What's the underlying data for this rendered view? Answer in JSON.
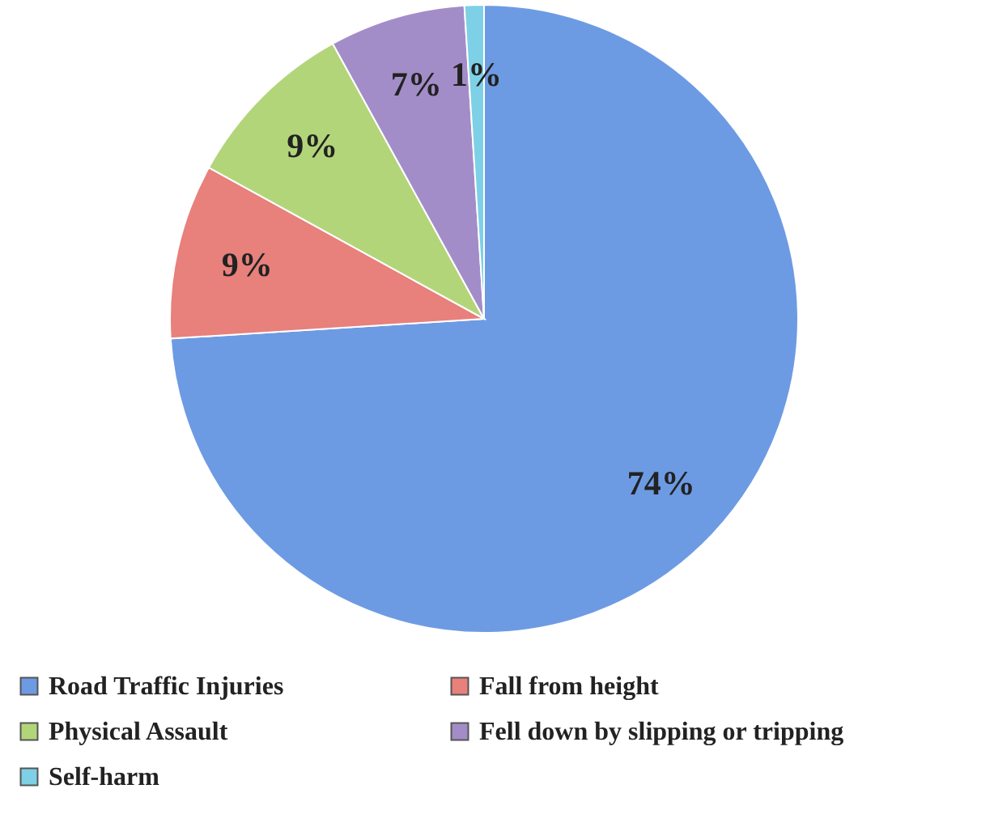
{
  "chart_data": {
    "type": "pie",
    "categories": [
      "Road Traffic Injuries",
      "Fall from height",
      "Physical Assault",
      "Fell down by slipping or tripping",
      "Self-harm"
    ],
    "values": [
      74,
      9,
      9,
      7,
      1
    ],
    "colors": [
      "#6d9be3",
      "#e8807c",
      "#b3d57a",
      "#a38dc8",
      "#7dd0e6"
    ],
    "value_labels": [
      "74%",
      "9%",
      "9%",
      "7%",
      "1%"
    ],
    "legend": "bottom"
  }
}
